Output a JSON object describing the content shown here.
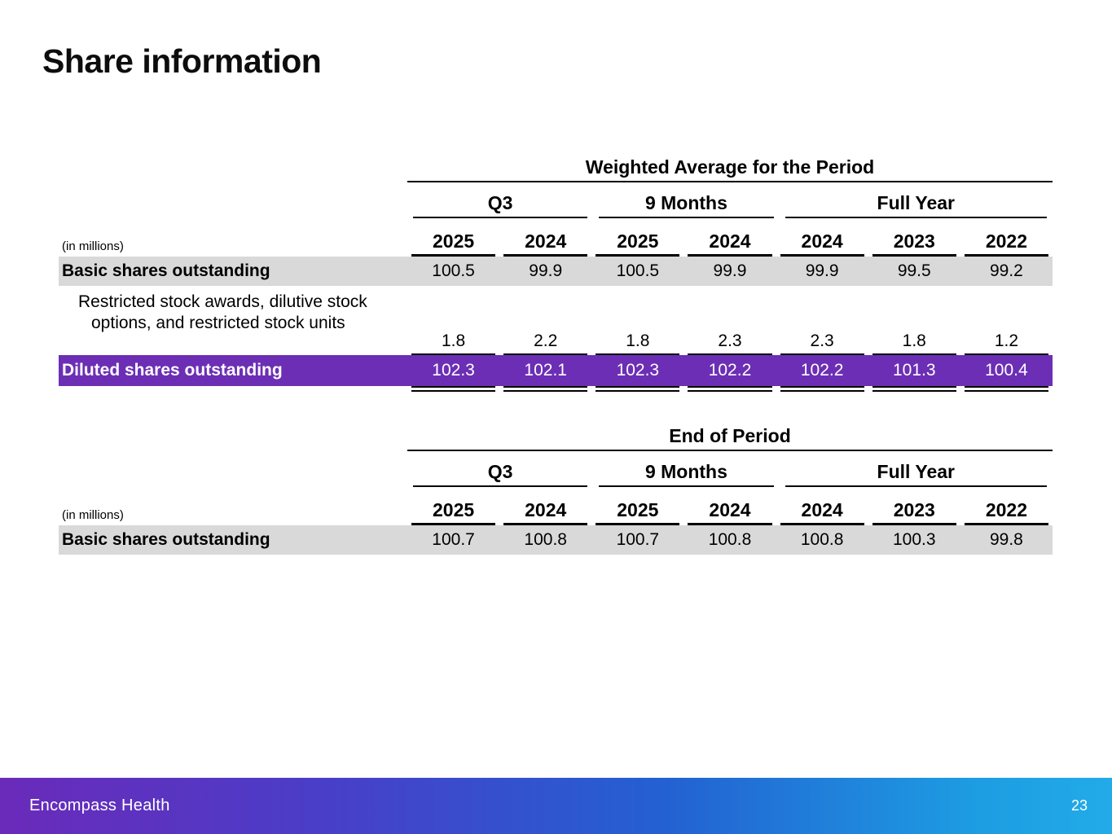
{
  "slide": {
    "title": "Share information"
  },
  "colors": {
    "highlight_row_purple": "#6c2eb5",
    "shaded_row_gray": "#d9d9d9",
    "footer_gradient_left": "#6b2aba",
    "footer_gradient_right": "#22abe8",
    "text": "#000000",
    "highlight_text": "#ffffff"
  },
  "tables": [
    {
      "title": "Weighted Average for the Period",
      "unit_label": "(in millions)",
      "groups": [
        {
          "label": "Q3"
        },
        {
          "label": "9 Months"
        },
        {
          "label": "Full Year"
        }
      ],
      "years": [
        "2025",
        "2024",
        "2025",
        "2024",
        "2024",
        "2023",
        "2022"
      ],
      "rows": [
        {
          "label": "Basic shares outstanding",
          "values": [
            "100.5",
            "99.9",
            "100.5",
            "99.9",
            "99.9",
            "99.5",
            "99.2"
          ]
        },
        {
          "label": "Restricted stock awards, dilutive stock options, and restricted stock units",
          "values": [
            "1.8",
            "2.2",
            "1.8",
            "2.3",
            "2.3",
            "1.8",
            "1.2"
          ]
        },
        {
          "label": "Diluted shares outstanding",
          "values": [
            "102.3",
            "102.1",
            "102.3",
            "102.2",
            "102.2",
            "101.3",
            "100.4"
          ]
        }
      ]
    },
    {
      "title": "End of Period",
      "unit_label": "(in millions)",
      "groups": [
        {
          "label": "Q3"
        },
        {
          "label": "9 Months"
        },
        {
          "label": "Full Year"
        }
      ],
      "years": [
        "2025",
        "2024",
        "2025",
        "2024",
        "2024",
        "2023",
        "2022"
      ],
      "rows": [
        {
          "label": "Basic shares outstanding",
          "values": [
            "100.7",
            "100.8",
            "100.7",
            "100.8",
            "100.8",
            "100.3",
            "99.8"
          ]
        }
      ]
    }
  ],
  "footer": {
    "brand": "Encompass Health",
    "page_number": "23"
  }
}
